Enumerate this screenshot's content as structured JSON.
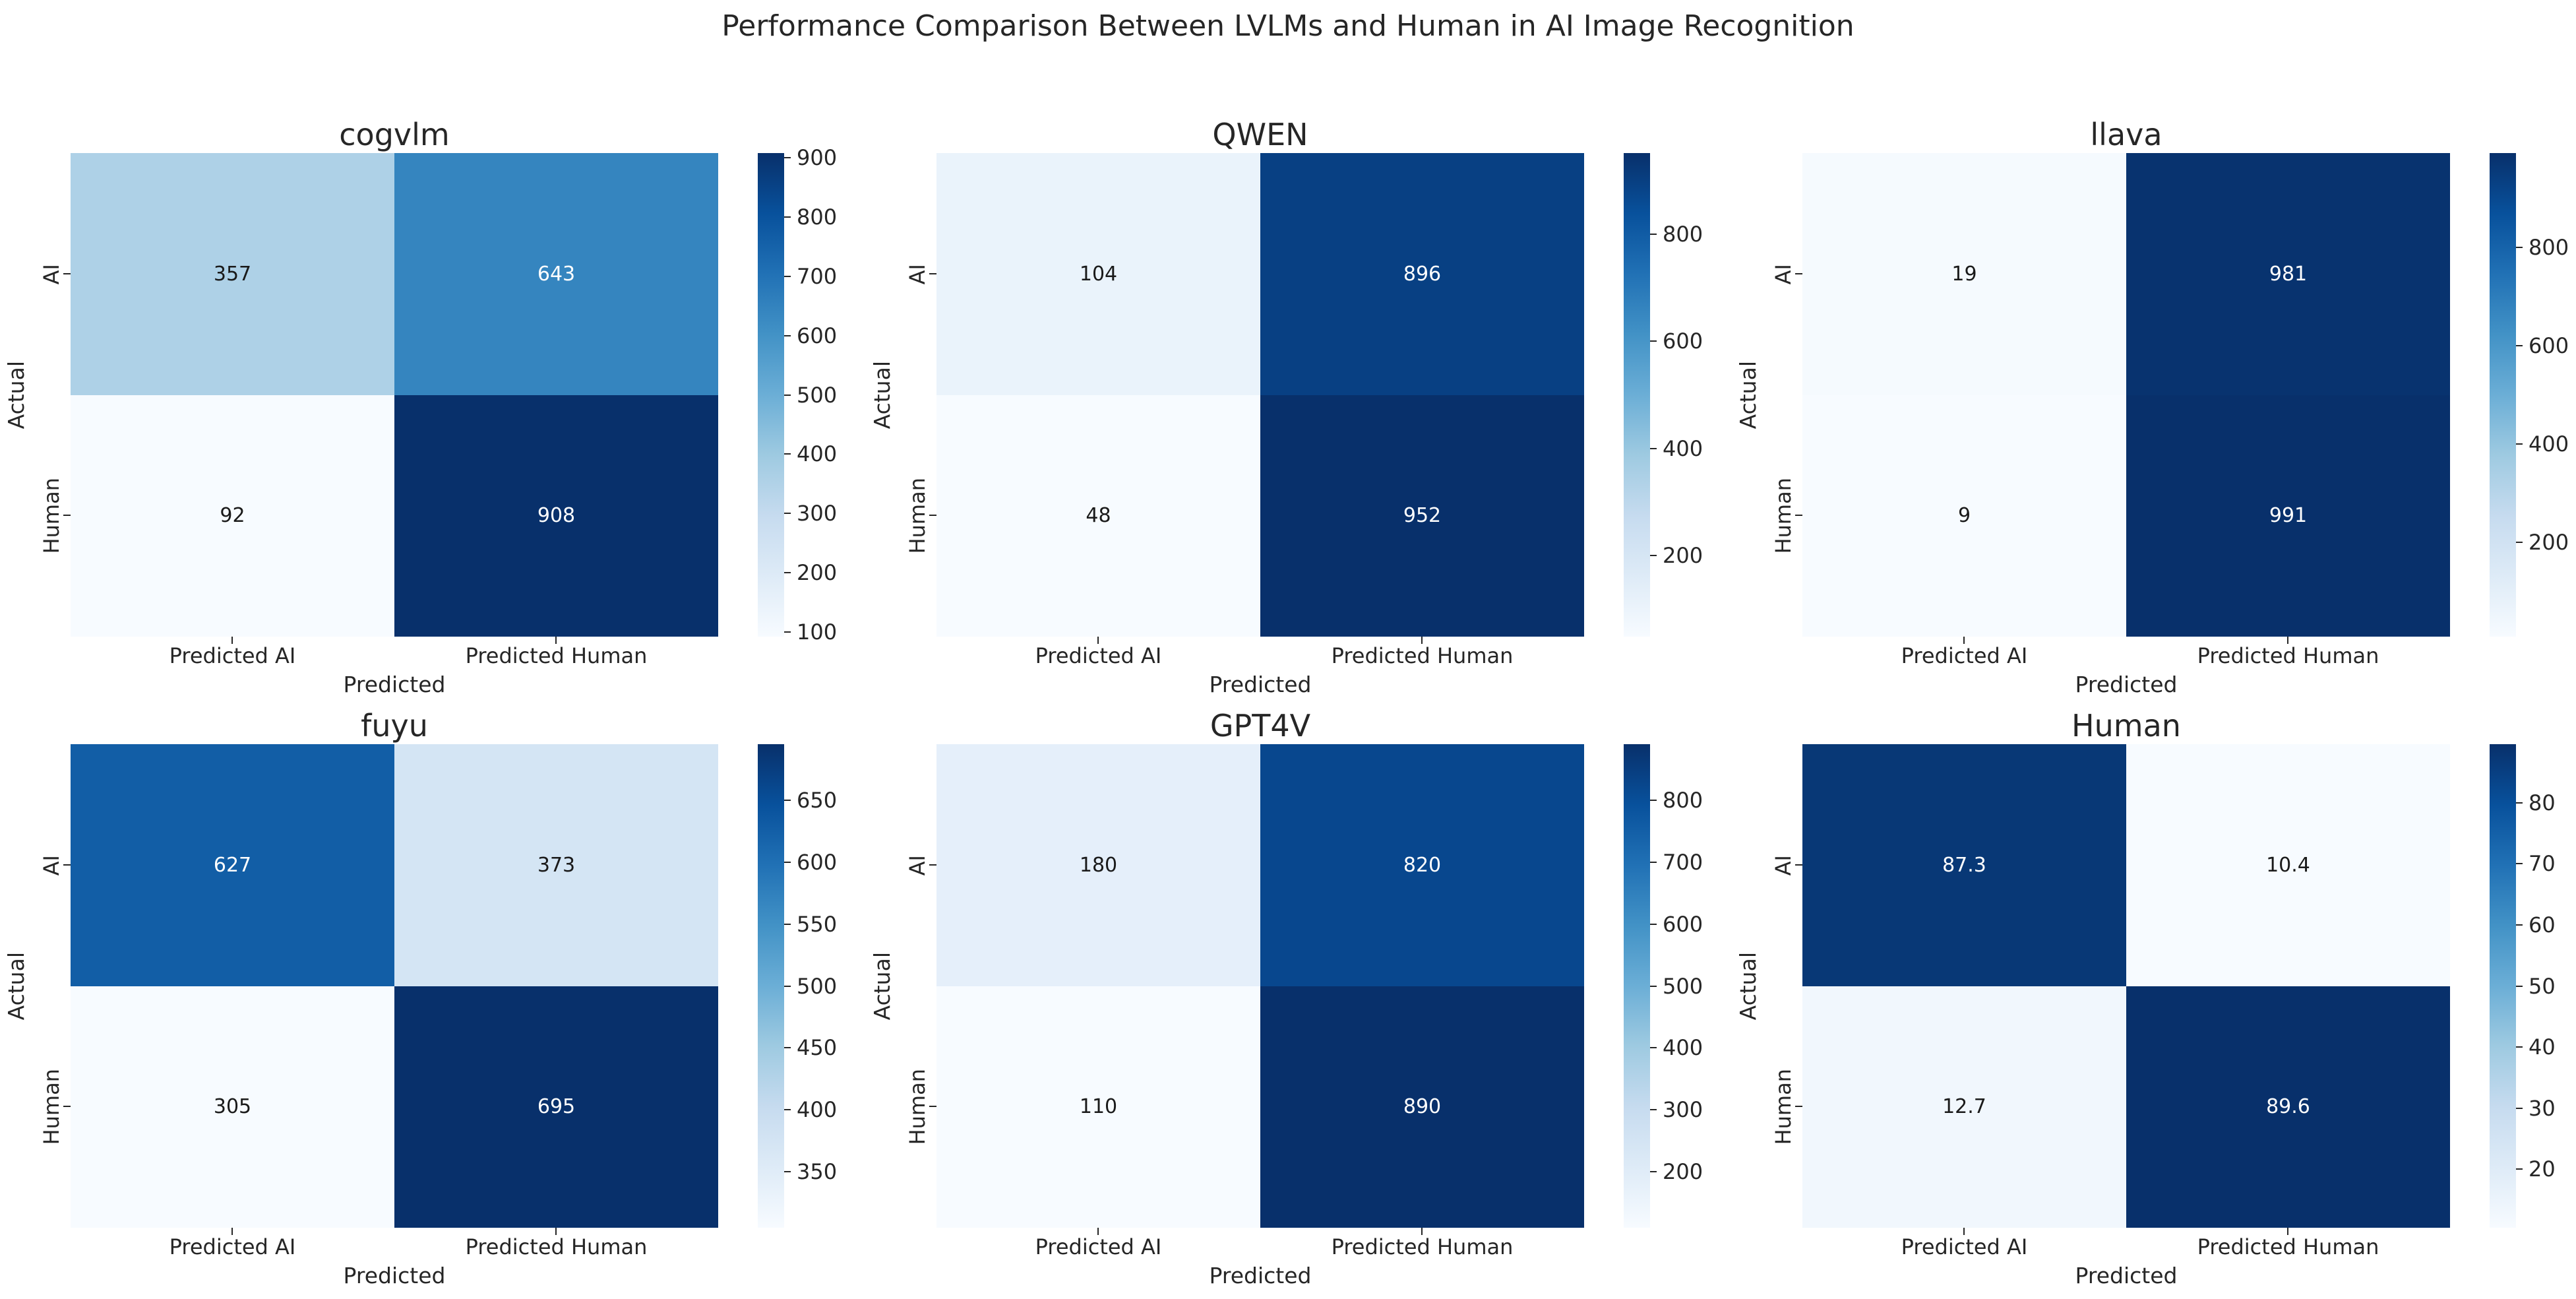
{
  "figure": {
    "title": "Performance Comparison Between LVLMs and Human in AI Image Recognition"
  },
  "chart_data": [
    {
      "type": "heatmap",
      "title": "cogvlm",
      "xlabel": "Predicted",
      "ylabel": "Actual",
      "x_categories": [
        "Predicted AI",
        "Predicted Human"
      ],
      "y_categories": [
        "AI",
        "Human"
      ],
      "values": [
        [
          357,
          643
        ],
        [
          92,
          908
        ]
      ],
      "vmin": 92,
      "vmax": 908,
      "colormap": "Blues",
      "colorbar_ticks": [
        100,
        200,
        300,
        400,
        500,
        600,
        700,
        800,
        900
      ]
    },
    {
      "type": "heatmap",
      "title": "QWEN",
      "xlabel": "Predicted",
      "ylabel": "Actual",
      "x_categories": [
        "Predicted AI",
        "Predicted Human"
      ],
      "y_categories": [
        "AI",
        "Human"
      ],
      "values": [
        [
          104,
          896
        ],
        [
          48,
          952
        ]
      ],
      "vmin": 48,
      "vmax": 952,
      "colormap": "Blues",
      "colorbar_ticks": [
        200,
        400,
        600,
        800
      ]
    },
    {
      "type": "heatmap",
      "title": "llava",
      "xlabel": "Predicted",
      "ylabel": "Actual",
      "x_categories": [
        "Predicted AI",
        "Predicted Human"
      ],
      "y_categories": [
        "AI",
        "Human"
      ],
      "values": [
        [
          19,
          981
        ],
        [
          9,
          991
        ]
      ],
      "vmin": 9,
      "vmax": 991,
      "colormap": "Blues",
      "colorbar_ticks": [
        200,
        400,
        600,
        800
      ]
    },
    {
      "type": "heatmap",
      "title": "fuyu",
      "xlabel": "Predicted",
      "ylabel": "Actual",
      "x_categories": [
        "Predicted AI",
        "Predicted Human"
      ],
      "y_categories": [
        "AI",
        "Human"
      ],
      "values": [
        [
          627,
          373
        ],
        [
          305,
          695
        ]
      ],
      "vmin": 305,
      "vmax": 695,
      "colormap": "Blues",
      "colorbar_ticks": [
        350,
        400,
        450,
        500,
        550,
        600,
        650
      ]
    },
    {
      "type": "heatmap",
      "title": "GPT4V",
      "xlabel": "Predicted",
      "ylabel": "Actual",
      "x_categories": [
        "Predicted AI",
        "Predicted Human"
      ],
      "y_categories": [
        "AI",
        "Human"
      ],
      "values": [
        [
          180,
          820
        ],
        [
          110,
          890
        ]
      ],
      "vmin": 110,
      "vmax": 890,
      "colormap": "Blues",
      "colorbar_ticks": [
        200,
        300,
        400,
        500,
        600,
        700,
        800
      ]
    },
    {
      "type": "heatmap",
      "title": "Human",
      "xlabel": "Predicted",
      "ylabel": "Actual",
      "x_categories": [
        "Predicted AI",
        "Predicted Human"
      ],
      "y_categories": [
        "AI",
        "Human"
      ],
      "values": [
        [
          87.3,
          10.4
        ],
        [
          12.7,
          89.6
        ]
      ],
      "vmin": 10.4,
      "vmax": 89.6,
      "colormap": "Blues",
      "colorbar_ticks": [
        20,
        30,
        40,
        50,
        60,
        70,
        80
      ]
    }
  ],
  "subplots": [
    {
      "title": "cogvlm",
      "xlabel": "Predicted",
      "ylabel": "Actual",
      "xticklabels": [
        "Predicted AI",
        "Predicted Human"
      ],
      "yticklabels": [
        "AI",
        "Human"
      ],
      "cells": [
        {
          "value": "357",
          "bg": "#aed1e7",
          "fg": "#1a1a1a"
        },
        {
          "value": "643",
          "bg": "#3585bf",
          "fg": "#ffffff"
        },
        {
          "value": "92",
          "bg": "#f7fbff",
          "fg": "#1a1a1a"
        },
        {
          "value": "908",
          "bg": "#08306b",
          "fg": "#ffffff"
        }
      ],
      "colorbar": {
        "ticks": [
          {
            "label": "100",
            "pos": 0.0098
          },
          {
            "label": "200",
            "pos": 0.1324
          },
          {
            "label": "300",
            "pos": 0.2549
          },
          {
            "label": "400",
            "pos": 0.3775
          },
          {
            "label": "500",
            "pos": 0.5
          },
          {
            "label": "600",
            "pos": 0.6225
          },
          {
            "label": "700",
            "pos": 0.7451
          },
          {
            "label": "800",
            "pos": 0.8676
          },
          {
            "label": "900",
            "pos": 0.9902
          }
        ]
      }
    },
    {
      "title": "QWEN",
      "xlabel": "Predicted",
      "ylabel": "Actual",
      "xticklabels": [
        "Predicted AI",
        "Predicted Human"
      ],
      "yticklabels": [
        "AI",
        "Human"
      ],
      "cells": [
        {
          "value": "104",
          "bg": "#eaf3fb",
          "fg": "#1a1a1a"
        },
        {
          "value": "896",
          "bg": "#084083",
          "fg": "#ffffff"
        },
        {
          "value": "48",
          "bg": "#f7fbff",
          "fg": "#1a1a1a"
        },
        {
          "value": "952",
          "bg": "#08306b",
          "fg": "#ffffff"
        }
      ],
      "colorbar": {
        "ticks": [
          {
            "label": "200",
            "pos": 0.1681
          },
          {
            "label": "400",
            "pos": 0.3894
          },
          {
            "label": "600",
            "pos": 0.6106
          },
          {
            "label": "800",
            "pos": 0.8319
          }
        ]
      }
    },
    {
      "title": "llava",
      "xlabel": "Predicted",
      "ylabel": "Actual",
      "xticklabels": [
        "Predicted AI",
        "Predicted Human"
      ],
      "yticklabels": [
        "AI",
        "Human"
      ],
      "cells": [
        {
          "value": "19",
          "bg": "#f5fafe",
          "fg": "#1a1a1a"
        },
        {
          "value": "981",
          "bg": "#08336f",
          "fg": "#ffffff"
        },
        {
          "value": "9",
          "bg": "#f7fbff",
          "fg": "#1a1a1a"
        },
        {
          "value": "991",
          "bg": "#08306b",
          "fg": "#ffffff"
        }
      ],
      "colorbar": {
        "ticks": [
          {
            "label": "200",
            "pos": 0.1945
          },
          {
            "label": "400",
            "pos": 0.3982
          },
          {
            "label": "600",
            "pos": 0.6018
          },
          {
            "label": "800",
            "pos": 0.8055
          }
        ]
      }
    },
    {
      "title": "fuyu",
      "xlabel": "Predicted",
      "ylabel": "Actual",
      "xticklabels": [
        "Predicted AI",
        "Predicted Human"
      ],
      "yticklabels": [
        "AI",
        "Human"
      ],
      "cells": [
        {
          "value": "627",
          "bg": "#125ea6",
          "fg": "#ffffff"
        },
        {
          "value": "373",
          "bg": "#d4e5f4",
          "fg": "#1a1a1a"
        },
        {
          "value": "305",
          "bg": "#f7fbff",
          "fg": "#1a1a1a"
        },
        {
          "value": "695",
          "bg": "#08306b",
          "fg": "#ffffff"
        }
      ],
      "colorbar": {
        "ticks": [
          {
            "label": "350",
            "pos": 0.1154
          },
          {
            "label": "400",
            "pos": 0.2436
          },
          {
            "label": "450",
            "pos": 0.3718
          },
          {
            "label": "500",
            "pos": 0.5
          },
          {
            "label": "550",
            "pos": 0.6282
          },
          {
            "label": "600",
            "pos": 0.7564
          },
          {
            "label": "650",
            "pos": 0.8846
          }
        ]
      }
    },
    {
      "title": "GPT4V",
      "xlabel": "Predicted",
      "ylabel": "Actual",
      "xticklabels": [
        "Predicted AI",
        "Predicted Human"
      ],
      "yticklabels": [
        "AI",
        "Human"
      ],
      "cells": [
        {
          "value": "180",
          "bg": "#e5effa",
          "fg": "#1a1a1a"
        },
        {
          "value": "820",
          "bg": "#08478e",
          "fg": "#ffffff"
        },
        {
          "value": "110",
          "bg": "#f7fbff",
          "fg": "#1a1a1a"
        },
        {
          "value": "890",
          "bg": "#08306b",
          "fg": "#ffffff"
        }
      ],
      "colorbar": {
        "ticks": [
          {
            "label": "200",
            "pos": 0.1154
          },
          {
            "label": "300",
            "pos": 0.2436
          },
          {
            "label": "400",
            "pos": 0.3718
          },
          {
            "label": "500",
            "pos": 0.5
          },
          {
            "label": "600",
            "pos": 0.6282
          },
          {
            "label": "700",
            "pos": 0.7564
          },
          {
            "label": "800",
            "pos": 0.8846
          }
        ]
      }
    },
    {
      "title": "Human",
      "xlabel": "Predicted",
      "ylabel": "Actual",
      "xticklabels": [
        "Predicted AI",
        "Predicted Human"
      ],
      "yticklabels": [
        "AI",
        "Human"
      ],
      "cells": [
        {
          "value": "87.3",
          "bg": "#083876",
          "fg": "#ffffff"
        },
        {
          "value": "10.4",
          "bg": "#f7fbff",
          "fg": "#1a1a1a"
        },
        {
          "value": "12.7",
          "bg": "#f1f7fd",
          "fg": "#1a1a1a"
        },
        {
          "value": "89.6",
          "bg": "#08306b",
          "fg": "#ffffff"
        }
      ],
      "colorbar": {
        "ticks": [
          {
            "label": "20",
            "pos": 0.1212
          },
          {
            "label": "30",
            "pos": 0.2475
          },
          {
            "label": "40",
            "pos": 0.3737
          },
          {
            "label": "50",
            "pos": 0.5
          },
          {
            "label": "60",
            "pos": 0.6263
          },
          {
            "label": "70",
            "pos": 0.7525
          },
          {
            "label": "80",
            "pos": 0.8788
          }
        ]
      }
    }
  ]
}
